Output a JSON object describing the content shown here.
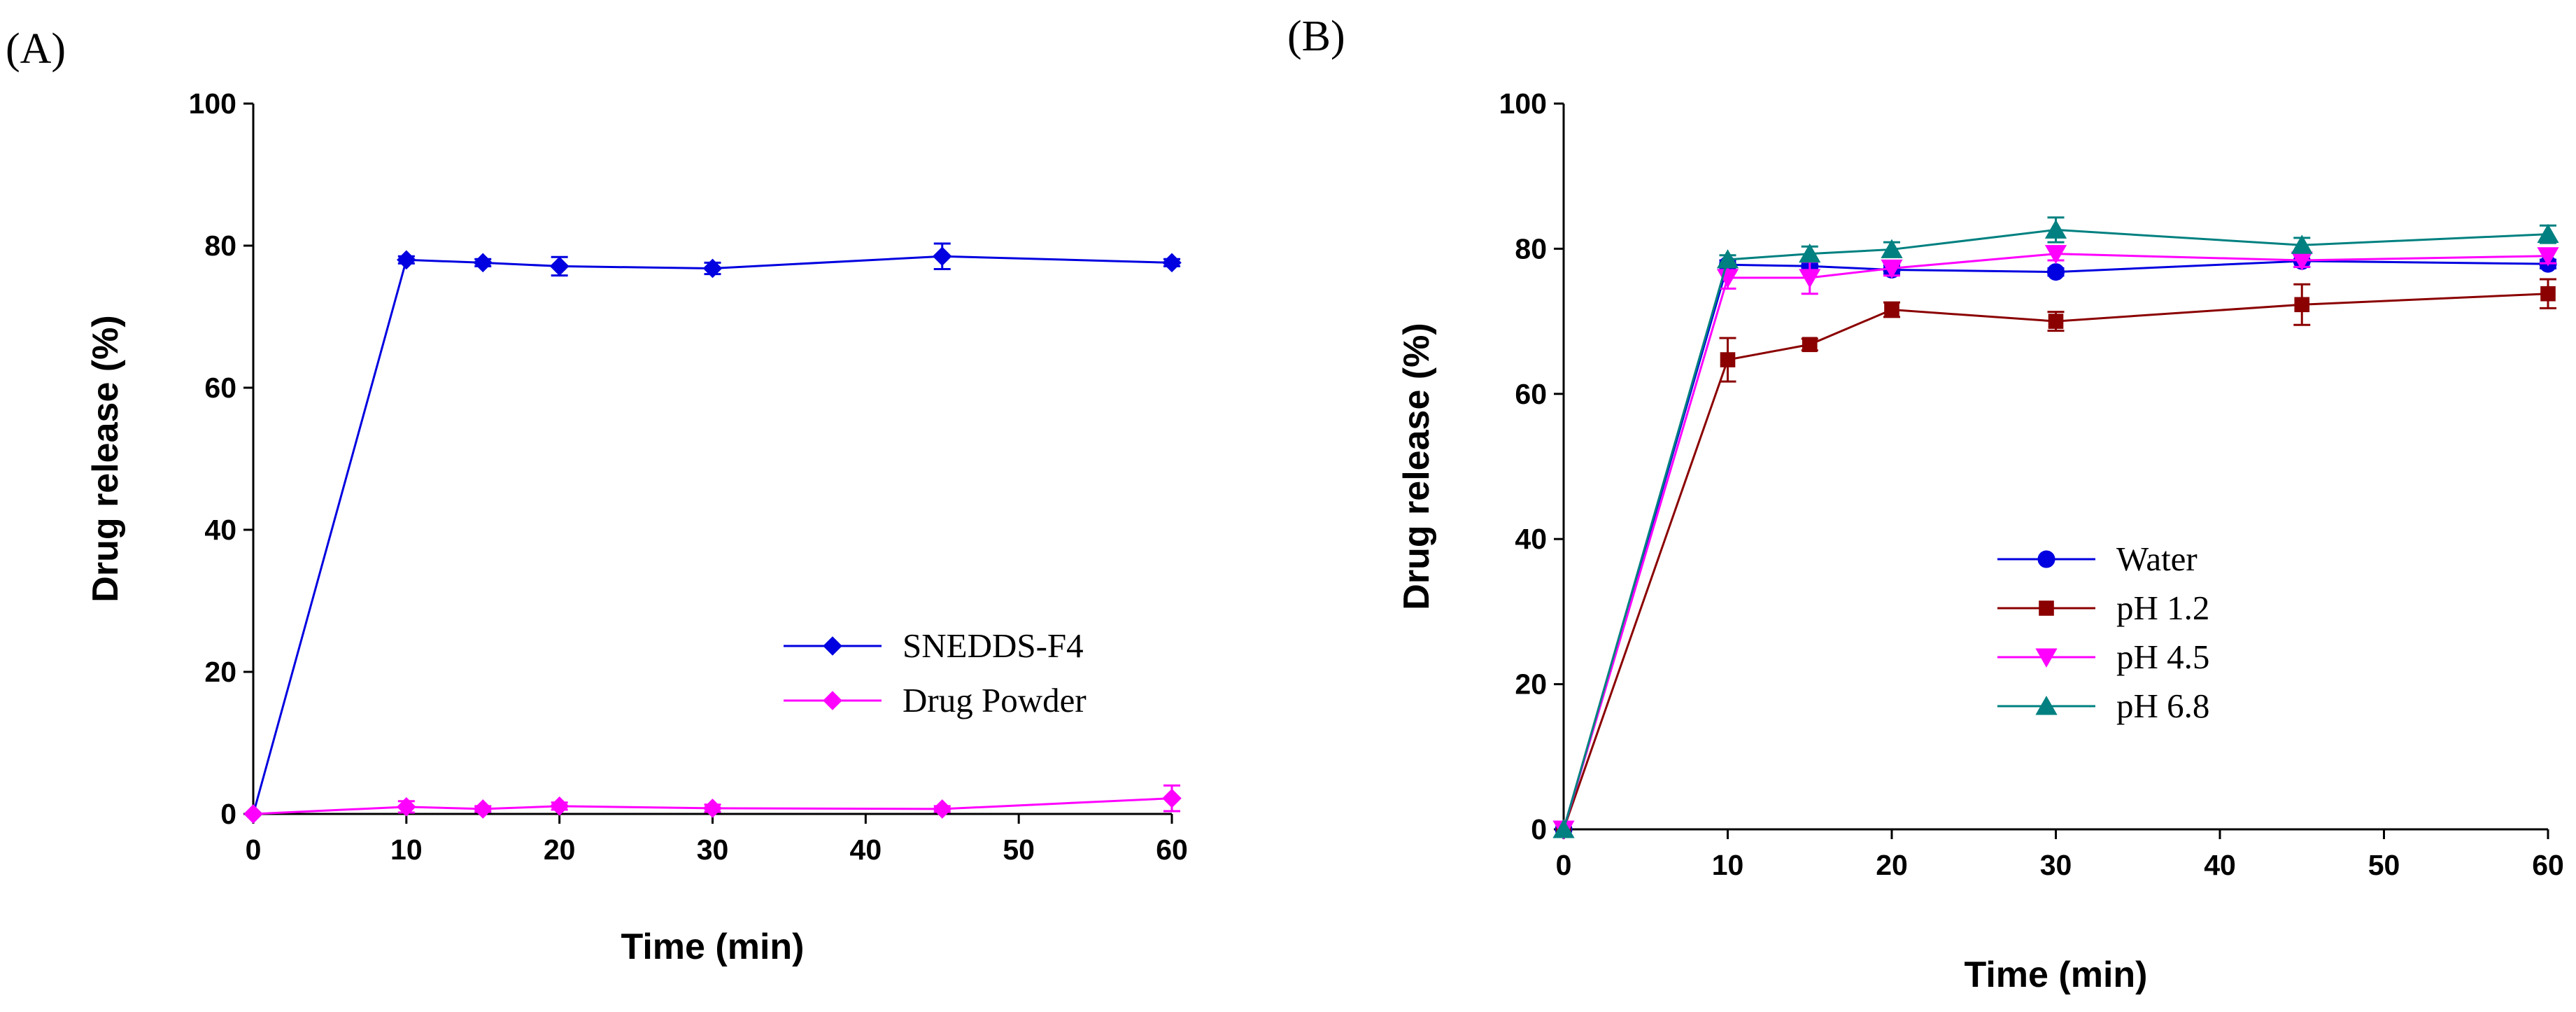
{
  "chart_data": [
    {
      "panel_label": "(A)",
      "type": "line",
      "xlabel": "Time (min)",
      "ylabel": "Drug release (%)",
      "xlim": [
        0,
        60
      ],
      "ylim": [
        0,
        100
      ],
      "xticks": [
        0,
        10,
        20,
        30,
        40,
        50,
        60
      ],
      "yticks": [
        0,
        20,
        40,
        60,
        80,
        100
      ],
      "grid": false,
      "legend_position": "center-right",
      "series": [
        {
          "name": "SNEDDS-F4",
          "color": "#0000e0",
          "marker": "diamond",
          "x": [
            0,
            10,
            15,
            20,
            30,
            45,
            60
          ],
          "y": [
            0,
            78,
            77.6,
            77.1,
            76.8,
            78.5,
            77.6
          ],
          "err": [
            0,
            0.5,
            0.5,
            1.3,
            0.8,
            1.8,
            0.5
          ]
        },
        {
          "name": "Drug Powder",
          "color": "#ff00ff",
          "marker": "diamond",
          "x": [
            0,
            10,
            15,
            20,
            30,
            45,
            60
          ],
          "y": [
            0,
            1,
            0.7,
            1.1,
            0.8,
            0.7,
            2.2
          ],
          "err": [
            0,
            0.8,
            0.4,
            0.5,
            0.5,
            0.4,
            1.8
          ]
        }
      ]
    },
    {
      "panel_label": "(B)",
      "type": "line",
      "xlabel": "Time (min)",
      "ylabel": "Drug release (%)",
      "xlim": [
        0,
        60
      ],
      "ylim": [
        0,
        100
      ],
      "xticks": [
        0,
        10,
        20,
        30,
        40,
        50,
        60
      ],
      "yticks": [
        0,
        20,
        40,
        60,
        80,
        100
      ],
      "grid": false,
      "legend_position": "bottom-right",
      "series": [
        {
          "name": "Water",
          "color": "#0000e0",
          "marker": "circle",
          "x": [
            0,
            10,
            15,
            20,
            30,
            45,
            60
          ],
          "y": [
            0,
            77.8,
            77.6,
            77.1,
            76.8,
            78.3,
            77.9
          ],
          "err": [
            0,
            0.6,
            0.5,
            0.6,
            0.5,
            0.8,
            0.6
          ]
        },
        {
          "name": "pH 1.2",
          "color": "#8b0000",
          "marker": "square",
          "x": [
            0,
            10,
            15,
            20,
            30,
            45,
            60
          ],
          "y": [
            0,
            64.7,
            66.8,
            71.6,
            70.0,
            72.3,
            73.8
          ],
          "err": [
            0,
            3.0,
            0.8,
            1.0,
            1.3,
            2.8,
            2.0
          ]
        },
        {
          "name": "pH 4.5",
          "color": "#ff00ff",
          "marker": "triangle-down",
          "x": [
            0,
            10,
            15,
            20,
            30,
            45,
            60
          ],
          "y": [
            0,
            76.0,
            76.0,
            77.3,
            79.3,
            78.4,
            79.0
          ],
          "err": [
            0,
            1.5,
            2.2,
            1.0,
            0.9,
            0.9,
            1.0
          ]
        },
        {
          "name": "pH 6.8",
          "color": "#008080",
          "marker": "triangle-up",
          "x": [
            0,
            10,
            15,
            20,
            30,
            45,
            60
          ],
          "y": [
            0,
            78.5,
            79.3,
            79.9,
            82.6,
            80.5,
            82.0
          ],
          "err": [
            0,
            0.6,
            1.0,
            1.0,
            1.7,
            1.0,
            1.2
          ]
        }
      ]
    }
  ]
}
